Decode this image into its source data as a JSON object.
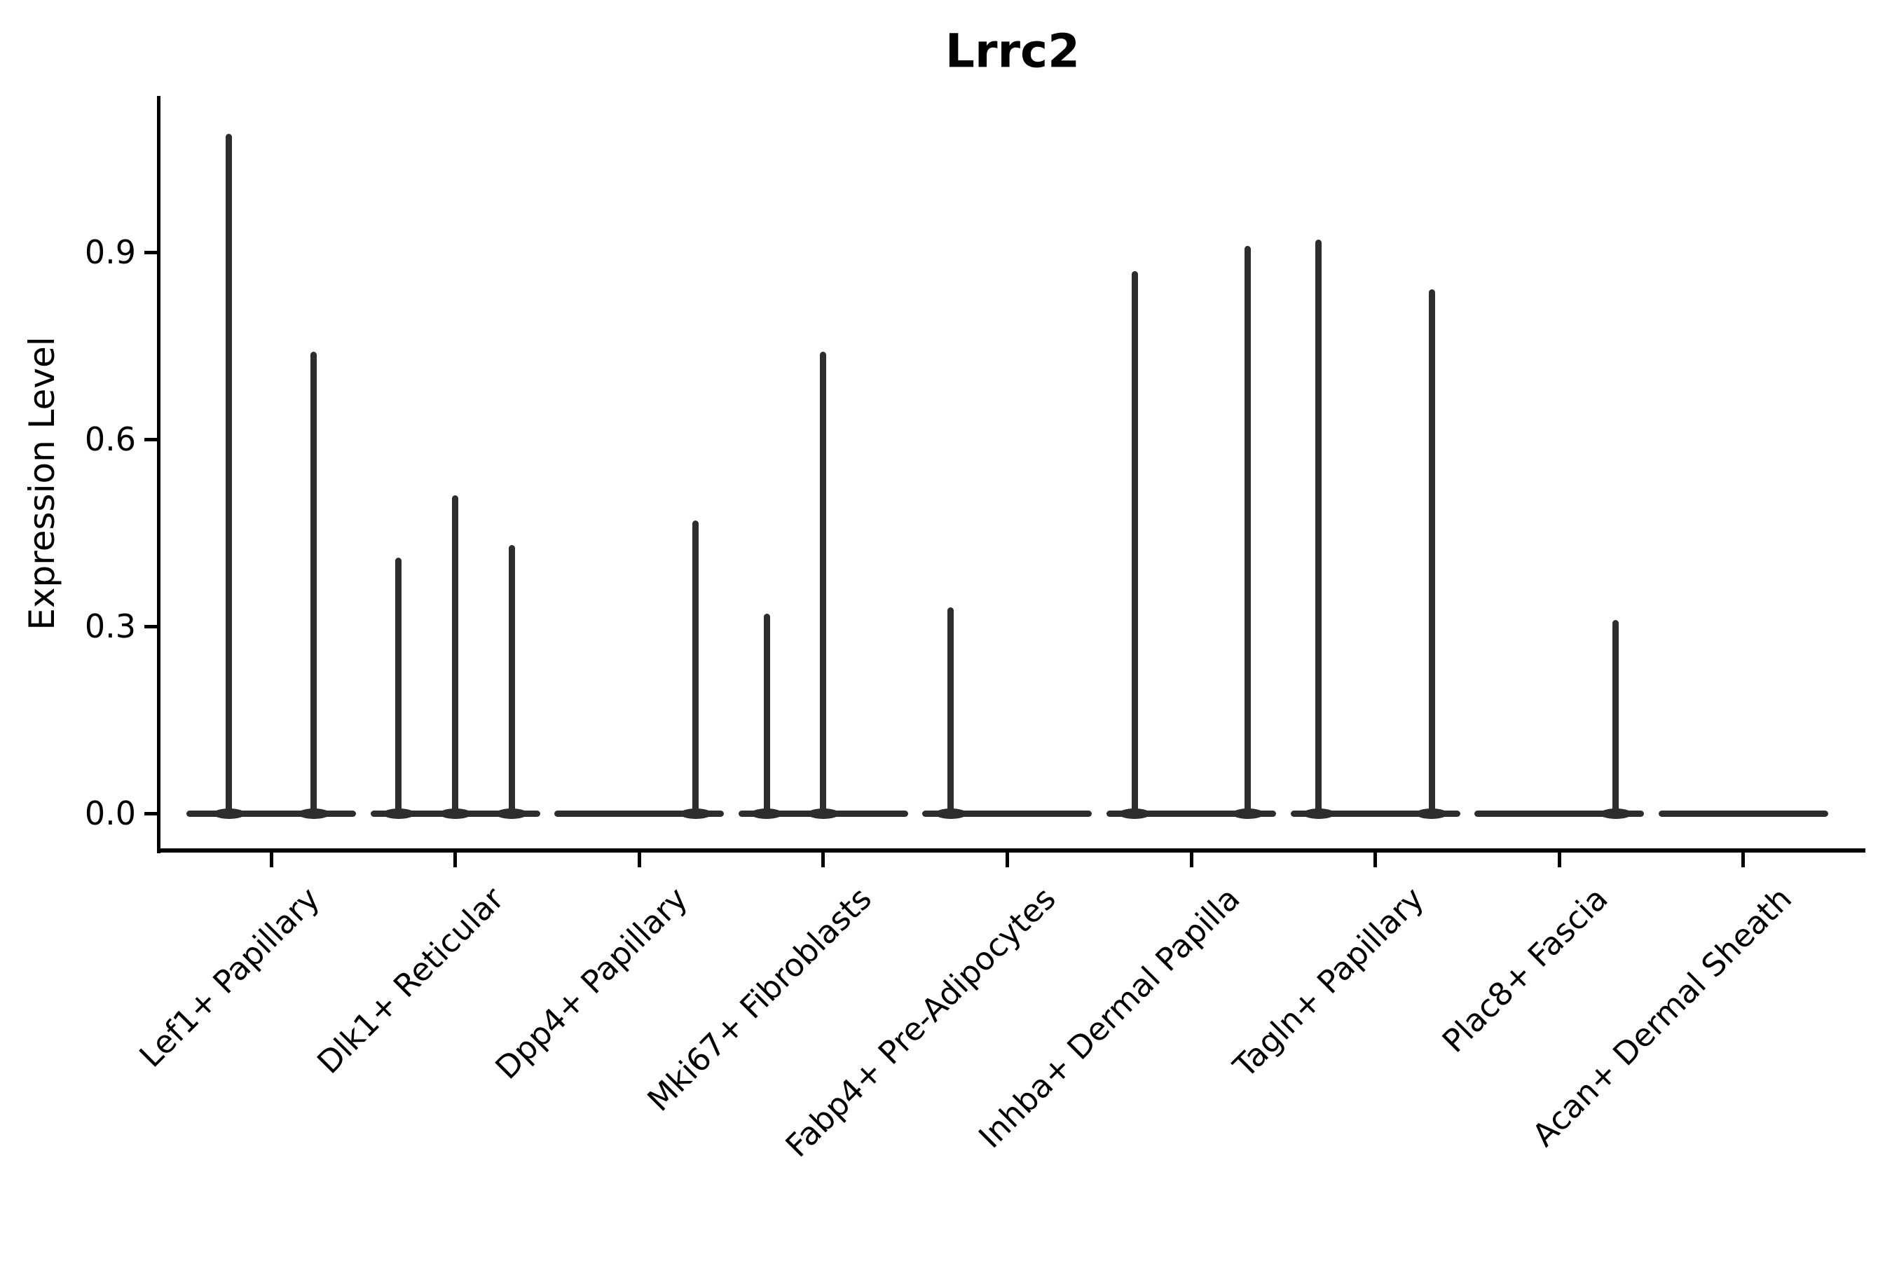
{
  "title": "Lrrc2",
  "chart_data": {
    "type": "violin",
    "title": "Lrrc2",
    "xlabel": "",
    "ylabel": "Expression Level",
    "yticks": [
      0.0,
      0.3,
      0.6,
      0.9
    ],
    "ytick_labels": [
      "0.0",
      "0.3",
      "0.6",
      "0.9"
    ],
    "ylim": [
      -0.06,
      1.15
    ],
    "grid": false,
    "legend": "none",
    "x_tick_rotation_deg": 45,
    "categories": [
      "Lef1+ Papillary",
      "Dlk1+ Reticular",
      "Dpp4+ Papillary",
      "Mki67+ Fibroblasts",
      "Fabp4+ Pre-Adipocytes",
      "Inhba+ Dermal Papilla",
      "Tagln+ Papillary",
      "Plac8+ Fascia",
      "Acan+ Dermal Sheath"
    ],
    "description": "Violin plot of Lrrc2 expression; each cell type shows a flat violin body at 0 with thin density spikes whose peaks reach the listed expression values.",
    "violins": [
      {
        "category": "Lef1+ Papillary",
        "spikes": [
          {
            "x_offset": -60.5,
            "peak": 1.09
          },
          {
            "x_offset": 60.5,
            "peak": 0.74
          }
        ]
      },
      {
        "category": "Dlk1+ Reticular",
        "spikes": [
          {
            "x_offset": -80.7,
            "peak": 0.41
          },
          {
            "x_offset": 0,
            "peak": 0.51
          },
          {
            "x_offset": 80.7,
            "peak": 0.43
          }
        ]
      },
      {
        "category": "Dpp4+ Papillary",
        "spikes": [
          {
            "x_offset": 80.7,
            "peak": 0.47
          }
        ]
      },
      {
        "category": "Mki67+ Fibroblasts",
        "spikes": [
          {
            "x_offset": -80.7,
            "peak": 0.32
          },
          {
            "x_offset": 0,
            "peak": 0.74
          }
        ]
      },
      {
        "category": "Fabp4+ Pre-Adipocytes",
        "spikes": [
          {
            "x_offset": -80.7,
            "peak": 0.33
          }
        ]
      },
      {
        "category": "Inhba+ Dermal Papilla",
        "spikes": [
          {
            "x_offset": -80.7,
            "peak": 0.87
          },
          {
            "x_offset": 80.7,
            "peak": 0.91
          }
        ]
      },
      {
        "category": "Tagln+ Papillary",
        "spikes": [
          {
            "x_offset": -80.7,
            "peak": 0.92
          },
          {
            "x_offset": 80.7,
            "peak": 0.84
          }
        ]
      },
      {
        "category": "Plac8+ Fascia",
        "spikes": [
          {
            "x_offset": 80.7,
            "peak": 0.31
          }
        ]
      },
      {
        "category": "Acan+ Dermal Sheath",
        "spikes": []
      }
    ],
    "style": {
      "violin_color": "#2d2d2d",
      "axis_color": "#000000",
      "text_color": "#000000",
      "background_color": "#ffffff"
    }
  }
}
